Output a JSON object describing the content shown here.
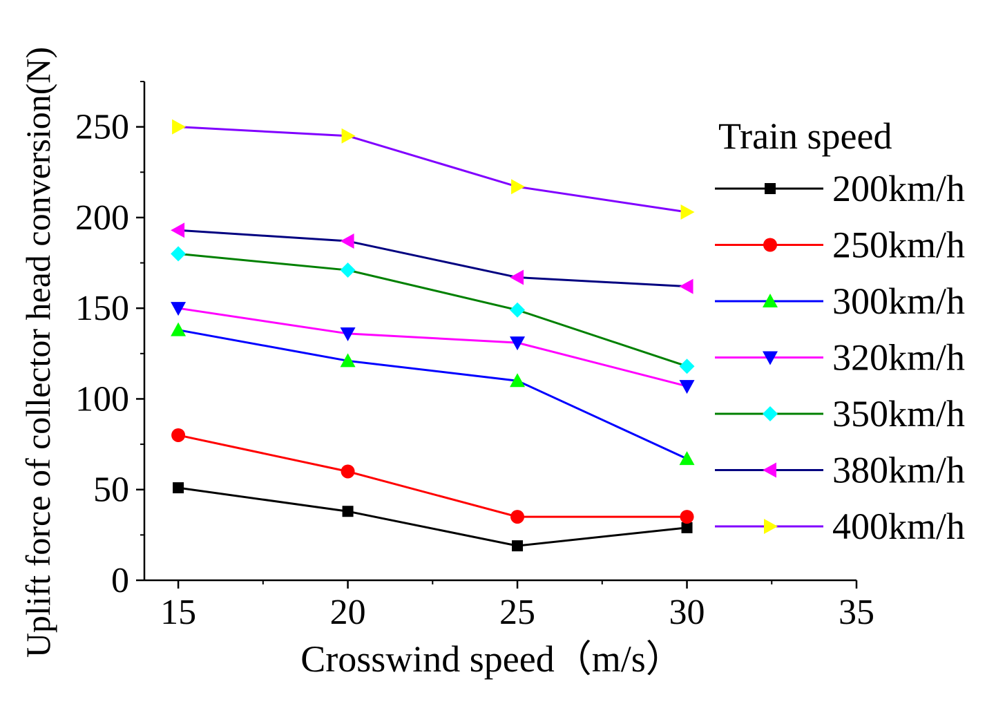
{
  "chart_data": {
    "type": "line",
    "title": "",
    "xlabel": "Crosswind speed（m/s）",
    "ylabel": "Uplift force of collector head conversion(N)",
    "xlim": [
      14,
      35
    ],
    "ylim": [
      0,
      275
    ],
    "xticks": [
      15,
      20,
      25,
      30,
      35
    ],
    "yticks": [
      0,
      50,
      100,
      150,
      200,
      250
    ],
    "x": [
      15,
      20,
      25,
      30
    ],
    "legend_title": "Train speed",
    "legend_position": "right",
    "grid": false,
    "series": [
      {
        "name": "200km/h",
        "line_color": "#000000",
        "marker": "square",
        "marker_color": "#000000",
        "values": [
          51,
          38,
          19,
          29
        ]
      },
      {
        "name": "250km/h",
        "line_color": "#ff0000",
        "marker": "circle",
        "marker_color": "#ff0000",
        "values": [
          80,
          60,
          35,
          35
        ]
      },
      {
        "name": "300km/h",
        "line_color": "#0000ff",
        "marker": "triangle-up",
        "marker_color": "#00ff00",
        "values": [
          138,
          121,
          110,
          67
        ]
      },
      {
        "name": "320km/h",
        "line_color": "#ff00ff",
        "marker": "triangle-down",
        "marker_color": "#0000ff",
        "values": [
          150,
          136,
          131,
          107
        ]
      },
      {
        "name": "350km/h",
        "line_color": "#008000",
        "marker": "diamond",
        "marker_color": "#00ffff",
        "values": [
          180,
          171,
          149,
          118
        ]
      },
      {
        "name": "380km/h",
        "line_color": "#000080",
        "marker": "triangle-left",
        "marker_color": "#ff00ff",
        "values": [
          193,
          187,
          167,
          162
        ]
      },
      {
        "name": "400km/h",
        "line_color": "#8000ff",
        "marker": "triangle-right",
        "marker_color": "#ffff00",
        "values": [
          250,
          245,
          217,
          203
        ]
      }
    ]
  }
}
